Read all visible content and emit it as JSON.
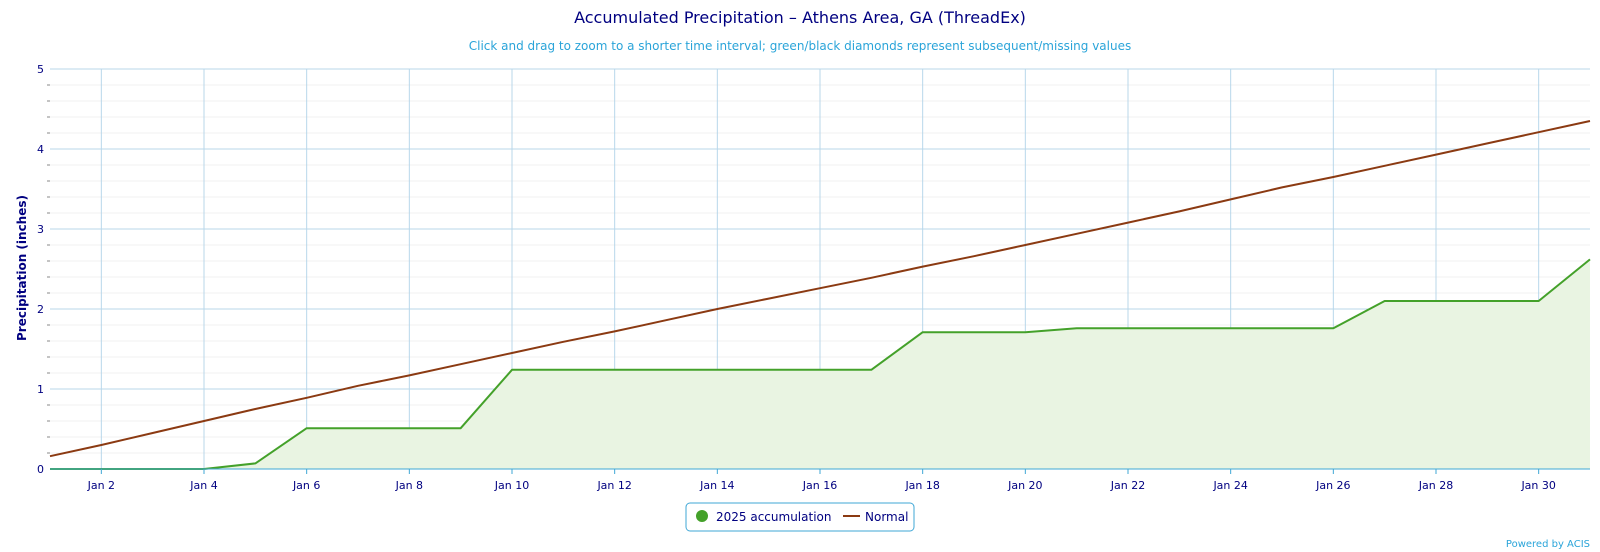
{
  "chart_data": {
    "type": "area",
    "title": "Accumulated Precipitation – Athens Area, GA (ThreadEx)",
    "subtitle": "Click and drag to zoom to a shorter time interval; green/black diamonds represent subsequent/missing values",
    "ylabel": "Precipitation (inches)",
    "xlabel": "",
    "x_range": [
      "Jan 1",
      "Jan 31"
    ],
    "ylim": [
      0,
      5
    ],
    "y_ticks": [
      0,
      1,
      2,
      3,
      4,
      5
    ],
    "x_ticks": [
      "Jan 2",
      "Jan 4",
      "Jan 6",
      "Jan 8",
      "Jan 10",
      "Jan 12",
      "Jan 14",
      "Jan 16",
      "Jan 18",
      "Jan 20",
      "Jan 22",
      "Jan 24",
      "Jan 26",
      "Jan 28",
      "Jan 30"
    ],
    "grid": true,
    "legend_position": "bottom-center",
    "credit": "Powered by ACIS",
    "colors": {
      "accumulation": "#44a12a",
      "accumulation_fill": "#e9f4e2",
      "normal": "#8b3a12",
      "grid": "#b8d7ea",
      "axis": "#3fa7d6"
    },
    "series": [
      {
        "name": "2025 accumulation",
        "type": "area",
        "x": [
          "Jan 1",
          "Jan 2",
          "Jan 3",
          "Jan 4",
          "Jan 5",
          "Jan 6",
          "Jan 7",
          "Jan 8",
          "Jan 9",
          "Jan 10",
          "Jan 11",
          "Jan 12",
          "Jan 13",
          "Jan 14",
          "Jan 15",
          "Jan 16",
          "Jan 17",
          "Jan 18",
          "Jan 19",
          "Jan 20",
          "Jan 21",
          "Jan 22",
          "Jan 23",
          "Jan 24",
          "Jan 25",
          "Jan 26",
          "Jan 27",
          "Jan 28",
          "Jan 29",
          "Jan 30",
          "Jan 31"
        ],
        "values": [
          0,
          0,
          0,
          0,
          0.07,
          0.51,
          0.51,
          0.51,
          0.51,
          1.24,
          1.24,
          1.24,
          1.24,
          1.24,
          1.24,
          1.24,
          1.24,
          1.71,
          1.71,
          1.71,
          1.76,
          1.76,
          1.76,
          1.76,
          1.76,
          1.76,
          2.1,
          2.1,
          2.1,
          2.1,
          2.62
        ]
      },
      {
        "name": "Normal",
        "type": "line",
        "x": [
          "Jan 1",
          "Jan 2",
          "Jan 3",
          "Jan 4",
          "Jan 5",
          "Jan 6",
          "Jan 7",
          "Jan 8",
          "Jan 9",
          "Jan 10",
          "Jan 11",
          "Jan 12",
          "Jan 13",
          "Jan 14",
          "Jan 15",
          "Jan 16",
          "Jan 17",
          "Jan 18",
          "Jan 19",
          "Jan 20",
          "Jan 21",
          "Jan 22",
          "Jan 23",
          "Jan 24",
          "Jan 25",
          "Jan 26",
          "Jan 27",
          "Jan 28",
          "Jan 29",
          "Jan 30",
          "Jan 31"
        ],
        "values": [
          0.16,
          0.3,
          0.45,
          0.6,
          0.75,
          0.89,
          1.04,
          1.17,
          1.31,
          1.45,
          1.59,
          1.72,
          1.86,
          2.0,
          2.13,
          2.26,
          2.39,
          2.53,
          2.66,
          2.8,
          2.94,
          3.08,
          3.22,
          3.37,
          3.52,
          3.65,
          3.79,
          3.93,
          4.07,
          4.21,
          4.35
        ]
      }
    ]
  }
}
